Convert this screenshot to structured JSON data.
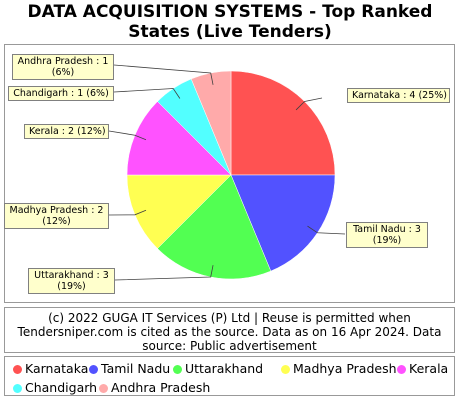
{
  "title_line1": "DATA ACQUISITION SYSTEMS - Top Ranked",
  "title_line2": "States (Live Tenders)",
  "source_line1": "(c) 2022 GUGA IT Services (P) Ltd | Reuse is permitted when",
  "source_line2": "Tendersniper.com is cited as the source. Data as on 16 Apr 2024. Data",
  "source_line3": "source: Public advertisement",
  "chart_data": {
    "type": "pie",
    "categories": [
      "Karnataka",
      "Tamil Nadu",
      "Uttarakhand",
      "Madhya Pradesh",
      "Kerala",
      "Chandigarh",
      "Andhra Pradesh"
    ],
    "values": [
      4,
      3,
      3,
      2,
      2,
      1,
      1
    ],
    "percentages": [
      25,
      19,
      19,
      12,
      12,
      6,
      6
    ],
    "colors": [
      "#ff5252",
      "#5252ff",
      "#52ff52",
      "#ffff52",
      "#ff52ff",
      "#52ffff",
      "#ffaaaa"
    ],
    "slice_labels": [
      [
        "Karnataka : 4 (25%)"
      ],
      [
        "Tamil Nadu : 3",
        "(19%)"
      ],
      [
        "Uttarakhand : 3",
        "(19%)"
      ],
      [
        "Madhya Pradesh : 2",
        "(12%)"
      ],
      [
        "Kerala : 2 (12%)"
      ],
      [
        "Chandigarh : 1 (6%)"
      ],
      [
        "Andhra Pradesh : 1",
        "(6%)"
      ]
    ],
    "legend_position": "bottom"
  }
}
